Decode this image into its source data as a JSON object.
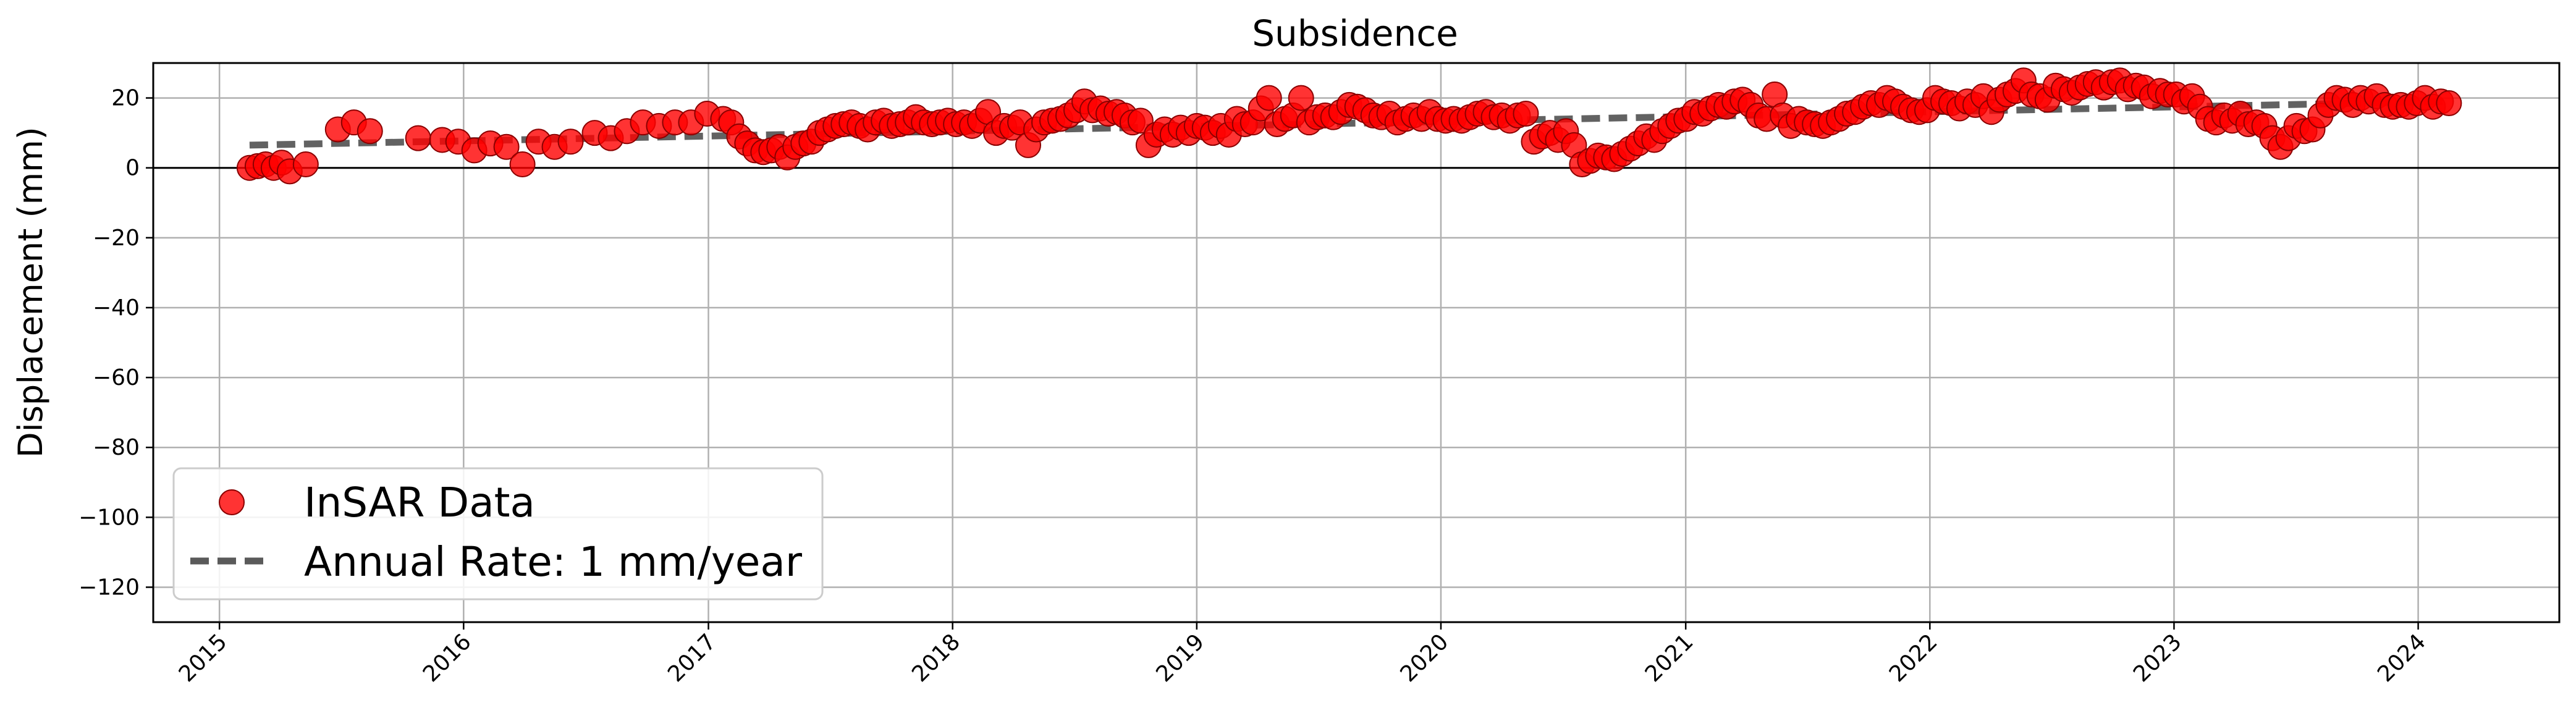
{
  "chart_data": {
    "type": "scatter",
    "title": "Subsidence",
    "xlabel": "",
    "ylabel": "Displacement (mm)",
    "xlim": [
      "2014-09-24",
      "2024-07-30"
    ],
    "ylim": [
      -130,
      30
    ],
    "x_ticks": [
      "2015",
      "2016",
      "2017",
      "2018",
      "2019",
      "2020",
      "2021",
      "2022",
      "2023",
      "2024"
    ],
    "y_ticks": [
      20,
      0,
      -20,
      -40,
      -60,
      -80,
      -100,
      -120
    ],
    "y_tick_labels": [
      "20",
      "0",
      "−20",
      "−40",
      "−60",
      "−80",
      "−100",
      "−120"
    ],
    "grid": true,
    "zero_line": true,
    "legend": {
      "position": "lower-left",
      "entries": [
        "InSAR Data",
        "Annual Rate: 1 mm/year"
      ]
    },
    "colors": {
      "points": "#ff0000",
      "point_edge": "#8b0000",
      "trend": "#5a5a5a",
      "grid": "#b0b0b0"
    },
    "series": [
      {
        "name": "InSAR Data",
        "kind": "scatter",
        "points": [
          [
            "2015-02-15",
            0
          ],
          [
            "2015-02-27",
            0.5
          ],
          [
            "2015-03-11",
            1
          ],
          [
            "2015-03-23",
            0
          ],
          [
            "2015-04-04",
            1.5
          ],
          [
            "2015-04-16",
            -1
          ],
          [
            "2015-05-10",
            1
          ],
          [
            "2015-06-27",
            11
          ],
          [
            "2015-07-21",
            13
          ],
          [
            "2015-08-14",
            10.5
          ],
          [
            "2015-10-25",
            8.5
          ],
          [
            "2015-11-30",
            8
          ],
          [
            "2015-12-24",
            7.5
          ],
          [
            "2016-01-17",
            5
          ],
          [
            "2016-02-10",
            7
          ],
          [
            "2016-03-05",
            6
          ],
          [
            "2016-03-29",
            1
          ],
          [
            "2016-04-22",
            7.5
          ],
          [
            "2016-05-16",
            6
          ],
          [
            "2016-06-09",
            7.5
          ],
          [
            "2016-07-15",
            10
          ],
          [
            "2016-08-08",
            8.5
          ],
          [
            "2016-09-01",
            10.5
          ],
          [
            "2016-09-25",
            13
          ],
          [
            "2016-10-19",
            12
          ],
          [
            "2016-11-12",
            13
          ],
          [
            "2016-12-06",
            13
          ],
          [
            "2016-12-30",
            15.5
          ],
          [
            "2017-01-23",
            14
          ],
          [
            "2017-02-04",
            13
          ],
          [
            "2017-02-16",
            9
          ],
          [
            "2017-02-28",
            7
          ],
          [
            "2017-03-12",
            5
          ],
          [
            "2017-03-24",
            4.5
          ],
          [
            "2017-04-05",
            5
          ],
          [
            "2017-04-17",
            6
          ],
          [
            "2017-04-29",
            3
          ],
          [
            "2017-05-11",
            6
          ],
          [
            "2017-05-23",
            7
          ],
          [
            "2017-06-04",
            7.5
          ],
          [
            "2017-06-16",
            10
          ],
          [
            "2017-06-28",
            11
          ],
          [
            "2017-07-10",
            12
          ],
          [
            "2017-07-22",
            12.5
          ],
          [
            "2017-08-03",
            13
          ],
          [
            "2017-08-15",
            12
          ],
          [
            "2017-08-27",
            11
          ],
          [
            "2017-09-08",
            13
          ],
          [
            "2017-09-20",
            13.5
          ],
          [
            "2017-10-02",
            12
          ],
          [
            "2017-10-14",
            12.5
          ],
          [
            "2017-10-26",
            13
          ],
          [
            "2017-11-07",
            14.5
          ],
          [
            "2017-11-19",
            13
          ],
          [
            "2017-12-01",
            12.5
          ],
          [
            "2017-12-13",
            13
          ],
          [
            "2017-12-25",
            13.5
          ],
          [
            "2018-01-06",
            12.5
          ],
          [
            "2018-01-18",
            13
          ],
          [
            "2018-01-30",
            12
          ],
          [
            "2018-02-11",
            13.5
          ],
          [
            "2018-02-23",
            16
          ],
          [
            "2018-03-07",
            10
          ],
          [
            "2018-03-19",
            12
          ],
          [
            "2018-03-31",
            11.5
          ],
          [
            "2018-04-12",
            13
          ],
          [
            "2018-04-24",
            6.5
          ],
          [
            "2018-05-06",
            11
          ],
          [
            "2018-05-18",
            13
          ],
          [
            "2018-05-30",
            13.5
          ],
          [
            "2018-06-11",
            14
          ],
          [
            "2018-06-23",
            15
          ],
          [
            "2018-07-05",
            16.5
          ],
          [
            "2018-07-17",
            19
          ],
          [
            "2018-07-29",
            16.5
          ],
          [
            "2018-08-10",
            17
          ],
          [
            "2018-08-22",
            15.5
          ],
          [
            "2018-09-03",
            16
          ],
          [
            "2018-09-15",
            15
          ],
          [
            "2018-09-27",
            13
          ],
          [
            "2018-10-09",
            13.5
          ],
          [
            "2018-10-21",
            6.5
          ],
          [
            "2018-11-02",
            9.5
          ],
          [
            "2018-11-14",
            11
          ],
          [
            "2018-11-26",
            9.5
          ],
          [
            "2018-12-08",
            11.5
          ],
          [
            "2018-12-20",
            10
          ],
          [
            "2019-01-01",
            12
          ],
          [
            "2019-01-13",
            11.5
          ],
          [
            "2019-01-25",
            10
          ],
          [
            "2019-02-06",
            12
          ],
          [
            "2019-02-18",
            9.5
          ],
          [
            "2019-03-02",
            14
          ],
          [
            "2019-03-14",
            12.5
          ],
          [
            "2019-03-26",
            13
          ],
          [
            "2019-04-07",
            17
          ],
          [
            "2019-04-19",
            20
          ],
          [
            "2019-05-01",
            12.5
          ],
          [
            "2019-05-13",
            14
          ],
          [
            "2019-05-25",
            15
          ],
          [
            "2019-06-06",
            20
          ],
          [
            "2019-06-18",
            13
          ],
          [
            "2019-06-30",
            14.5
          ],
          [
            "2019-07-12",
            15
          ],
          [
            "2019-07-24",
            14.5
          ],
          [
            "2019-08-05",
            16
          ],
          [
            "2019-08-17",
            18
          ],
          [
            "2019-08-29",
            17.5
          ],
          [
            "2019-09-10",
            16.5
          ],
          [
            "2019-09-22",
            15
          ],
          [
            "2019-10-04",
            14.5
          ],
          [
            "2019-10-16",
            15.5
          ],
          [
            "2019-10-28",
            13
          ],
          [
            "2019-11-09",
            14
          ],
          [
            "2019-11-21",
            15
          ],
          [
            "2019-12-03",
            14
          ],
          [
            "2019-12-15",
            16
          ],
          [
            "2019-12-27",
            14
          ],
          [
            "2020-01-08",
            13.5
          ],
          [
            "2020-01-20",
            14
          ],
          [
            "2020-02-01",
            13.5
          ],
          [
            "2020-02-13",
            14.5
          ],
          [
            "2020-02-25",
            15.5
          ],
          [
            "2020-03-08",
            16
          ],
          [
            "2020-03-20",
            14.5
          ],
          [
            "2020-04-01",
            15
          ],
          [
            "2020-04-13",
            13.5
          ],
          [
            "2020-04-25",
            15
          ],
          [
            "2020-05-07",
            15.5
          ],
          [
            "2020-05-19",
            7.5
          ],
          [
            "2020-05-31",
            9
          ],
          [
            "2020-06-12",
            10
          ],
          [
            "2020-06-24",
            8
          ],
          [
            "2020-07-06",
            10.5
          ],
          [
            "2020-07-18",
            6.5
          ],
          [
            "2020-07-30",
            1
          ],
          [
            "2020-08-11",
            2
          ],
          [
            "2020-08-23",
            3.5
          ],
          [
            "2020-09-04",
            3
          ],
          [
            "2020-09-16",
            2.5
          ],
          [
            "2020-09-28",
            4
          ],
          [
            "2020-10-10",
            5.5
          ],
          [
            "2020-10-22",
            7
          ],
          [
            "2020-11-03",
            9
          ],
          [
            "2020-11-15",
            8
          ],
          [
            "2020-11-27",
            10.5
          ],
          [
            "2020-12-09",
            12
          ],
          [
            "2020-12-21",
            13.5
          ],
          [
            "2021-01-02",
            14
          ],
          [
            "2021-01-14",
            16
          ],
          [
            "2021-01-26",
            15.5
          ],
          [
            "2021-02-07",
            17
          ],
          [
            "2021-02-19",
            18
          ],
          [
            "2021-03-03",
            17.5
          ],
          [
            "2021-03-15",
            19
          ],
          [
            "2021-03-27",
            19.5
          ],
          [
            "2021-04-08",
            18
          ],
          [
            "2021-04-20",
            15
          ],
          [
            "2021-05-02",
            14
          ],
          [
            "2021-05-14",
            21
          ],
          [
            "2021-05-26",
            15
          ],
          [
            "2021-06-07",
            12
          ],
          [
            "2021-06-19",
            14
          ],
          [
            "2021-07-01",
            13
          ],
          [
            "2021-07-13",
            12.5
          ],
          [
            "2021-07-25",
            12
          ],
          [
            "2021-08-06",
            13
          ],
          [
            "2021-08-18",
            14
          ],
          [
            "2021-08-30",
            15.5
          ],
          [
            "2021-09-11",
            16
          ],
          [
            "2021-09-23",
            17.5
          ],
          [
            "2021-10-05",
            18.5
          ],
          [
            "2021-10-17",
            18
          ],
          [
            "2021-10-29",
            20
          ],
          [
            "2021-11-10",
            19
          ],
          [
            "2021-11-22",
            17.5
          ],
          [
            "2021-12-04",
            16.5
          ],
          [
            "2021-12-16",
            16
          ],
          [
            "2021-12-28",
            16.5
          ],
          [
            "2022-01-09",
            20
          ],
          [
            "2022-01-21",
            19
          ],
          [
            "2022-02-02",
            18.5
          ],
          [
            "2022-02-14",
            17
          ],
          [
            "2022-02-26",
            19
          ],
          [
            "2022-03-10",
            18
          ],
          [
            "2022-03-22",
            20.5
          ],
          [
            "2022-04-03",
            16
          ],
          [
            "2022-04-15",
            19.5
          ],
          [
            "2022-04-27",
            21
          ],
          [
            "2022-05-09",
            22
          ],
          [
            "2022-05-21",
            25
          ],
          [
            "2022-06-02",
            21
          ],
          [
            "2022-06-14",
            20.5
          ],
          [
            "2022-06-26",
            19.5
          ],
          [
            "2022-07-08",
            23.5
          ],
          [
            "2022-07-20",
            22.5
          ],
          [
            "2022-08-01",
            21.5
          ],
          [
            "2022-08-13",
            23
          ],
          [
            "2022-08-25",
            24
          ],
          [
            "2022-09-06",
            24.5
          ],
          [
            "2022-09-18",
            23
          ],
          [
            "2022-09-30",
            24.5
          ],
          [
            "2022-10-12",
            25
          ],
          [
            "2022-10-24",
            22.5
          ],
          [
            "2022-11-05",
            23.5
          ],
          [
            "2022-11-17",
            23
          ],
          [
            "2022-11-29",
            20.5
          ],
          [
            "2022-12-11",
            22
          ],
          [
            "2022-12-23",
            21
          ],
          [
            "2023-01-04",
            21
          ],
          [
            "2023-01-16",
            19
          ],
          [
            "2023-01-28",
            20.5
          ],
          [
            "2023-02-09",
            17.5
          ],
          [
            "2023-02-21",
            14
          ],
          [
            "2023-03-05",
            13
          ],
          [
            "2023-03-17",
            15
          ],
          [
            "2023-03-29",
            13.5
          ],
          [
            "2023-04-10",
            15.5
          ],
          [
            "2023-04-22",
            12.5
          ],
          [
            "2023-05-04",
            13
          ],
          [
            "2023-05-16",
            12
          ],
          [
            "2023-05-28",
            8.5
          ],
          [
            "2023-06-09",
            6
          ],
          [
            "2023-06-21",
            8.5
          ],
          [
            "2023-07-03",
            12
          ],
          [
            "2023-07-15",
            10.5
          ],
          [
            "2023-07-27",
            11
          ],
          [
            "2023-08-08",
            15
          ],
          [
            "2023-08-20",
            18
          ],
          [
            "2023-09-01",
            20
          ],
          [
            "2023-09-13",
            19.5
          ],
          [
            "2023-09-25",
            18
          ],
          [
            "2023-10-07",
            20
          ],
          [
            "2023-10-19",
            19
          ],
          [
            "2023-10-31",
            20.5
          ],
          [
            "2023-11-12",
            18
          ],
          [
            "2023-11-24",
            17.5
          ],
          [
            "2023-12-06",
            18
          ],
          [
            "2023-12-18",
            17.5
          ],
          [
            "2023-12-30",
            18.5
          ],
          [
            "2024-01-11",
            20
          ],
          [
            "2024-01-23",
            17.5
          ],
          [
            "2024-02-04",
            19
          ],
          [
            "2024-02-16",
            18.5
          ]
        ]
      },
      {
        "name": "Annual Rate: 1 mm/year",
        "kind": "line",
        "style": "dashed",
        "points": [
          [
            "2015-02-15",
            6.5
          ],
          [
            "2024-02-16",
            19
          ]
        ]
      }
    ]
  }
}
